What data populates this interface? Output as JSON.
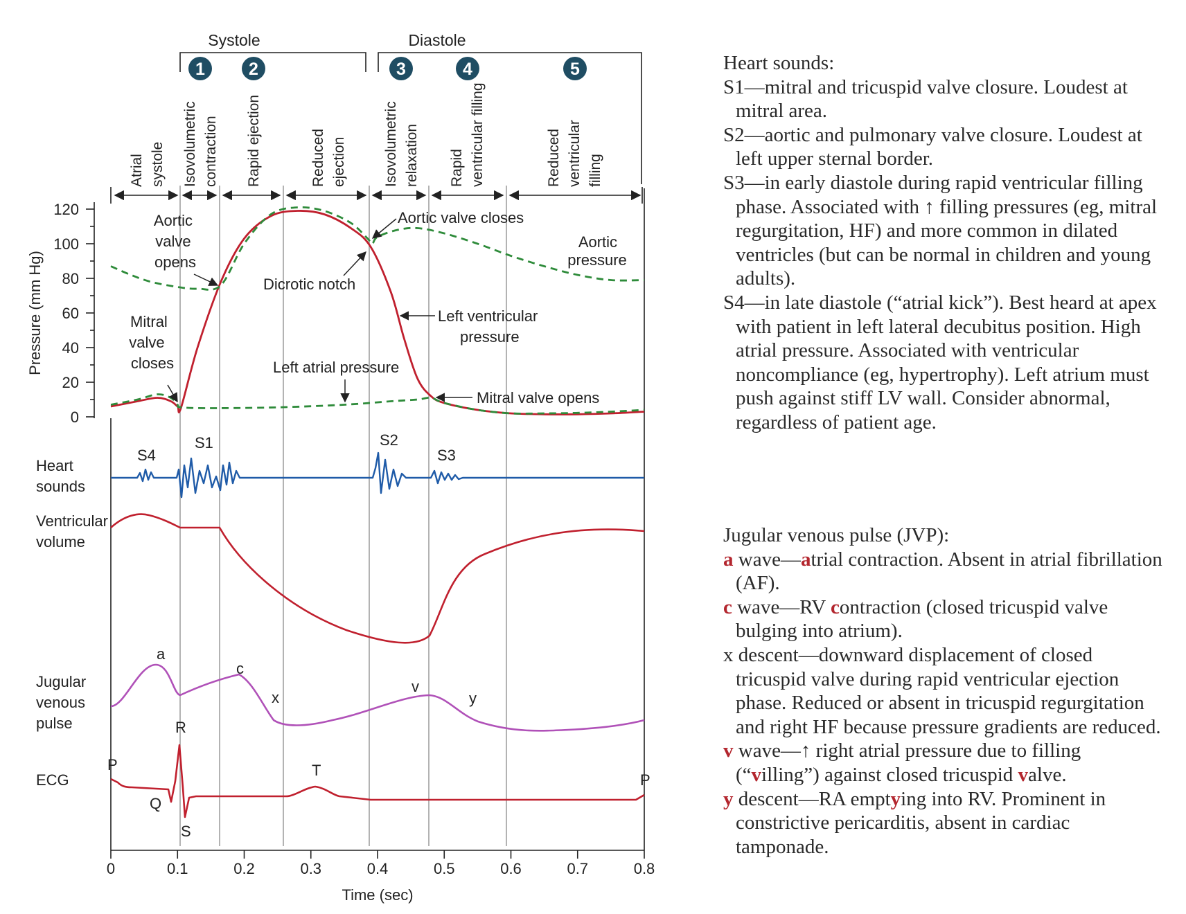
{
  "colors": {
    "lv_pressure": "#c0202e",
    "aortic_pressure": "#2e8b3a",
    "heart_sounds": "#1f5ba8",
    "jvp": "#b051b8",
    "ecg": "#c0202e",
    "badge": "#1f4d63"
  },
  "header": {
    "systole": "Systole",
    "diastole": "Diastole",
    "badges": [
      "1",
      "2",
      "3",
      "4",
      "5"
    ],
    "phases": [
      {
        "lines": [
          "Atrial",
          "systole"
        ]
      },
      {
        "lines": [
          "Isovolumetric",
          "contraction"
        ]
      },
      {
        "lines": [
          "Rapid ejection"
        ]
      },
      {
        "lines": [
          "Reduced",
          "ejection"
        ]
      },
      {
        "lines": [
          "Isovolumetric",
          "relaxation"
        ]
      },
      {
        "lines": [
          "Rapid",
          "ventricular filling"
        ]
      },
      {
        "lines": [
          "Reduced",
          "ventricular",
          "filling"
        ]
      }
    ]
  },
  "pressure_axis": {
    "label": "Pressure (mm Hg)",
    "ticks": [
      "120",
      "100",
      "80",
      "60",
      "40",
      "20",
      "0"
    ]
  },
  "time_axis": {
    "label": "Time (sec)",
    "ticks": [
      "0",
      "0.1",
      "0.2",
      "0.3",
      "0.4",
      "0.5",
      "0.6",
      "0.7",
      "0.8"
    ]
  },
  "annotations": {
    "aortic_valve_opens": [
      "Aortic",
      "valve",
      "opens"
    ],
    "aortic_valve_closes": "Aortic valve closes",
    "aortic_pressure": [
      "Aortic",
      "pressure"
    ],
    "dicrotic_notch": "Dicrotic notch",
    "mitral_valve_closes": [
      "Mitral",
      "valve",
      "closes"
    ],
    "left_atrial_pressure": "Left atrial pressure",
    "left_ventricular_pressure": [
      "Left ventricular",
      "pressure"
    ],
    "mitral_valve_opens": "Mitral valve opens"
  },
  "rows": {
    "heart_sounds": [
      "Heart",
      "sounds"
    ],
    "ventricular_volume": [
      "Ventricular",
      "volume"
    ],
    "jvp": [
      "Jugular",
      "venous",
      "pulse"
    ],
    "ecg": "ECG"
  },
  "sound_labels": {
    "s4": "S4",
    "s1": "S1",
    "s2": "S2",
    "s3": "S3"
  },
  "jvp_labels": {
    "a": "a",
    "c": "c",
    "x": "x",
    "v": "v",
    "y": "y"
  },
  "ecg_labels": {
    "p_start": "P",
    "q": "Q",
    "r": "R",
    "s": "S",
    "t": "T",
    "p_end": "P"
  },
  "heart_sounds_notes": {
    "title": "Heart sounds:",
    "items": [
      "S1—mitral and tricuspid valve closure. Loudest at mitral area.",
      "S2—aortic and pulmonary valve closure. Loudest at left upper sternal border.",
      "S3—in early diastole during rapid ventricular filling phase. Associated with ↑ filling pressures (eg, mitral regurgitation, HF) and more common in dilated ventricles (but can be normal in children and young adults).",
      "S4—in late diastole (“atrial kick”). Best heard at apex with patient in left lateral decubitus position. High atrial pressure. Associated with ventricular noncompliance (eg, hypertrophy). Left atrium must push against stiff LV wall. Consider abnormal, regardless of patient age."
    ]
  },
  "jvp_notes": {
    "title": "Jugular venous pulse (JVP):",
    "a_wave": {
      "letter": "a",
      "pre": " wave—",
      "hl": "a",
      "post": "trial contraction. Absent in atrial fibrillation (AF)."
    },
    "c_wave": {
      "letter": "c",
      "pre": " wave—RV ",
      "hl": "c",
      "post": "ontraction (closed tricuspid valve bulging into atrium)."
    },
    "x_descent": "x descent—downward displacement of closed tricuspid valve during rapid ventricular ejection phase. Reduced or absent in tricuspid regurgitation and right HF because pressure gradients are reduced.",
    "v_wave": {
      "letter": "v",
      "pre": " wave—↑ right atrial pressure due to filling (“",
      "hl": "v",
      "mid": "illing”) against closed tricuspid ",
      "hl2": "v",
      "post": "alve."
    },
    "y_descent": {
      "letter": "y",
      "pre": " descent—RA empt",
      "hl": "y",
      "post": "ing into RV. Prominent in constrictive pericarditis, absent in cardiac tamponade."
    }
  },
  "chart_data": {
    "type": "line",
    "xlabel": "Time (sec)",
    "ylabel": "Pressure (mm Hg)",
    "xlim": [
      0,
      0.8
    ],
    "ylim": [
      0,
      120
    ],
    "series": [
      {
        "name": "Left ventricular pressure",
        "x": [
          0,
          0.04,
          0.07,
          0.09,
          0.1,
          0.105,
          0.13,
          0.165,
          0.2,
          0.24,
          0.28,
          0.32,
          0.36,
          0.39,
          0.42,
          0.44,
          0.46,
          0.48,
          0.5,
          0.55,
          0.6,
          0.65,
          0.7,
          0.75,
          0.8
        ],
        "y": [
          6,
          9,
          11,
          9,
          6,
          5,
          40,
          78,
          103,
          116,
          119,
          117,
          109,
          98,
          72,
          45,
          22,
          12,
          8,
          4,
          2,
          1.5,
          1.5,
          2,
          3
        ]
      },
      {
        "name": "Aortic pressure",
        "x": [
          0,
          0.03,
          0.06,
          0.1,
          0.13,
          0.165,
          0.2,
          0.24,
          0.28,
          0.32,
          0.36,
          0.385,
          0.392,
          0.4,
          0.43,
          0.46,
          0.5,
          0.55,
          0.6,
          0.65,
          0.7,
          0.75,
          0.8
        ],
        "y": [
          87,
          82,
          78,
          75,
          74,
          76,
          100,
          117,
          121,
          119,
          112,
          103,
          100,
          104,
          108,
          109,
          106,
          100,
          93,
          87,
          82,
          79,
          79
        ]
      },
      {
        "name": "Left atrial pressure",
        "x": [
          0,
          0.04,
          0.07,
          0.09,
          0.1,
          0.105,
          0.15,
          0.25,
          0.35,
          0.42,
          0.46,
          0.48,
          0.5,
          0.55,
          0.6,
          0.65,
          0.7,
          0.75,
          0.8
        ],
        "y": [
          7,
          10,
          13,
          11,
          7,
          5.5,
          5,
          5.5,
          7,
          9,
          10,
          11,
          8,
          4,
          2,
          2,
          2.3,
          3,
          4
        ]
      }
    ]
  }
}
